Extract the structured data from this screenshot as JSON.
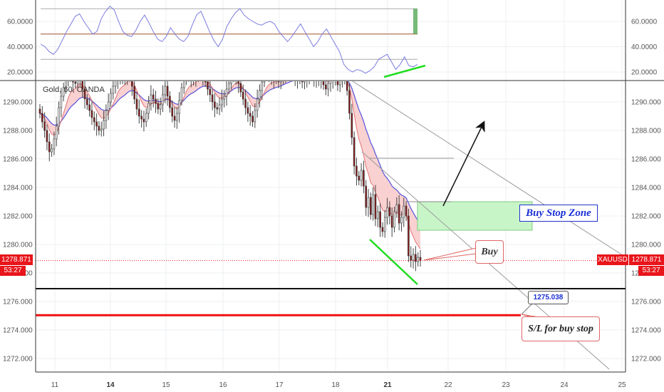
{
  "chart_data": [
    {
      "type": "line",
      "panel": "oscillator",
      "yticks": [
        60.0,
        40.0,
        20.0
      ],
      "ytick_labels": [
        "60.0000",
        "40.0000",
        "20.0000"
      ],
      "ylim": [
        14,
        76
      ],
      "levels": [
        70,
        50,
        30
      ],
      "series": [
        {
          "values": [
            42,
            40,
            36,
            34,
            38,
            45,
            52,
            58,
            64,
            66,
            60,
            55,
            50,
            52,
            62,
            68,
            72,
            69,
            60,
            52,
            49,
            48,
            53,
            60,
            65,
            59,
            52,
            46,
            44,
            48,
            55,
            50,
            46,
            44,
            48,
            57,
            65,
            68,
            60,
            52,
            45,
            40,
            46,
            56,
            62,
            67,
            70,
            65,
            62,
            60,
            58,
            57,
            59,
            60,
            58,
            52,
            48,
            44,
            48,
            53,
            58,
            52,
            46,
            40,
            44,
            50,
            54,
            48,
            42,
            36,
            26,
            22,
            20,
            22,
            21,
            19,
            21,
            24,
            30,
            32,
            34,
            28,
            22,
            26,
            32,
            25,
            24,
            26
          ]
        }
      ]
    },
    {
      "type": "candlestick",
      "panel": "price",
      "x_tick_labels": [
        "11",
        "14",
        "15",
        "16",
        "17",
        "18",
        "21",
        "22",
        "23",
        "24",
        "25"
      ],
      "x_tick_bold": [
        "14",
        "21"
      ],
      "yticks": [
        1290,
        1288,
        1286,
        1284,
        1282,
        1280,
        1278,
        1276,
        1274,
        1272
      ],
      "ytick_labels": [
        "1290.000",
        "1288.000",
        "1286.000",
        "1284.000",
        "1282.000",
        "1280.000",
        "1278.000",
        "1276.000",
        "1274.000",
        "1272.000"
      ],
      "ylim": [
        1270.9,
        1292.4
      ],
      "current_price": 1278.871,
      "current_price_label": "1278.871",
      "countdown": "53:27",
      "symbol_tag": "XAUUSD",
      "support_level": 1276.9,
      "stop_loss_level": 1275.038,
      "stop_loss_label": "1275.038",
      "buy_stop_zone": [
        1281.0,
        1283.0
      ],
      "closes": [
        1289.2,
        1288.6,
        1288.0,
        1287.2,
        1286.5,
        1286.7,
        1287.4,
        1288.3,
        1289.6,
        1290.4,
        1291.0,
        1291.6,
        1292.2,
        1292.0,
        1291.4,
        1291.3,
        1292.1,
        1291.6,
        1290.9,
        1290.2,
        1289.8,
        1289.4,
        1288.9,
        1288.6,
        1288.3,
        1288.0,
        1288.1,
        1288.7,
        1289.4,
        1290.0,
        1290.6,
        1291.1,
        1291.5,
        1292.2,
        1291.9,
        1291.6,
        1291.7,
        1292.1,
        1292.0,
        1291.1,
        1290.2,
        1289.5,
        1289.0,
        1288.8,
        1288.6,
        1289.2,
        1289.9,
        1290.5,
        1290.2,
        1289.9,
        1289.5,
        1289.8,
        1290.5,
        1291.1,
        1290.4,
        1289.6,
        1289.0,
        1288.7,
        1289.2,
        1290.1,
        1291.0,
        1291.7,
        1292.2,
        1292.0,
        1291.7,
        1291.5,
        1291.9,
        1292.2,
        1292.1,
        1291.8,
        1291.4,
        1290.9,
        1290.5,
        1290.0,
        1289.6,
        1289.5,
        1289.8,
        1290.2,
        1290.4,
        1290.9,
        1291.3,
        1291.9,
        1292.2,
        1291.8,
        1291.3,
        1290.7,
        1290.2,
        1289.6,
        1289.2,
        1289.0,
        1288.6,
        1289.4,
        1290.2,
        1290.8,
        1291.4,
        1292.0,
        1292.2,
        1291.9,
        1291.8,
        1291.6,
        1291.7,
        1291.4,
        1291.8,
        1292.0,
        1292.1,
        1291.9,
        1292.2,
        1292.0,
        1291.7,
        1291.6,
        1291.8,
        1291.4,
        1291.6,
        1291.9,
        1292.0,
        1291.8,
        1291.5,
        1291.7,
        1292.0,
        1291.6,
        1291.2,
        1290.9,
        1291.3,
        1291.6,
        1291.8,
        1291.5,
        1291.2,
        1291.6,
        1291.9,
        1292.1,
        1290.8,
        1289.2,
        1287.5,
        1285.5,
        1284.8,
        1284.5,
        1285.2,
        1284.1,
        1282.6,
        1283.3,
        1282.1,
        1283.5,
        1281.8,
        1282.3,
        1281.2,
        1280.9,
        1281.9,
        1282.6,
        1282.0,
        1281.2,
        1282.3,
        1282.8,
        1281.5,
        1281.9,
        1282.7,
        1282.0,
        1279.2,
        1278.9,
        1279.3,
        1278.8,
        1279.1,
        1278.871
      ]
    }
  ],
  "chart_title": "Gold, 60, OANDA",
  "annotations": {
    "buy_stop_zone": "Buy Stop Zone",
    "buy": "Buy",
    "stop_loss": "S/L for buy stop"
  },
  "colors": {
    "bull": "#ffffff",
    "bear": "#8b1a1a",
    "rsi_line": "#7b7be0",
    "ma_fast": "#5555dd",
    "ma_slow": "#e57373",
    "ribbon_fill": "#f8c9c9",
    "zone_fill": "#c8f5c8",
    "divergence": "#22dd22",
    "stop_line": "#ee1111",
    "price_tag": "#e8151b"
  }
}
